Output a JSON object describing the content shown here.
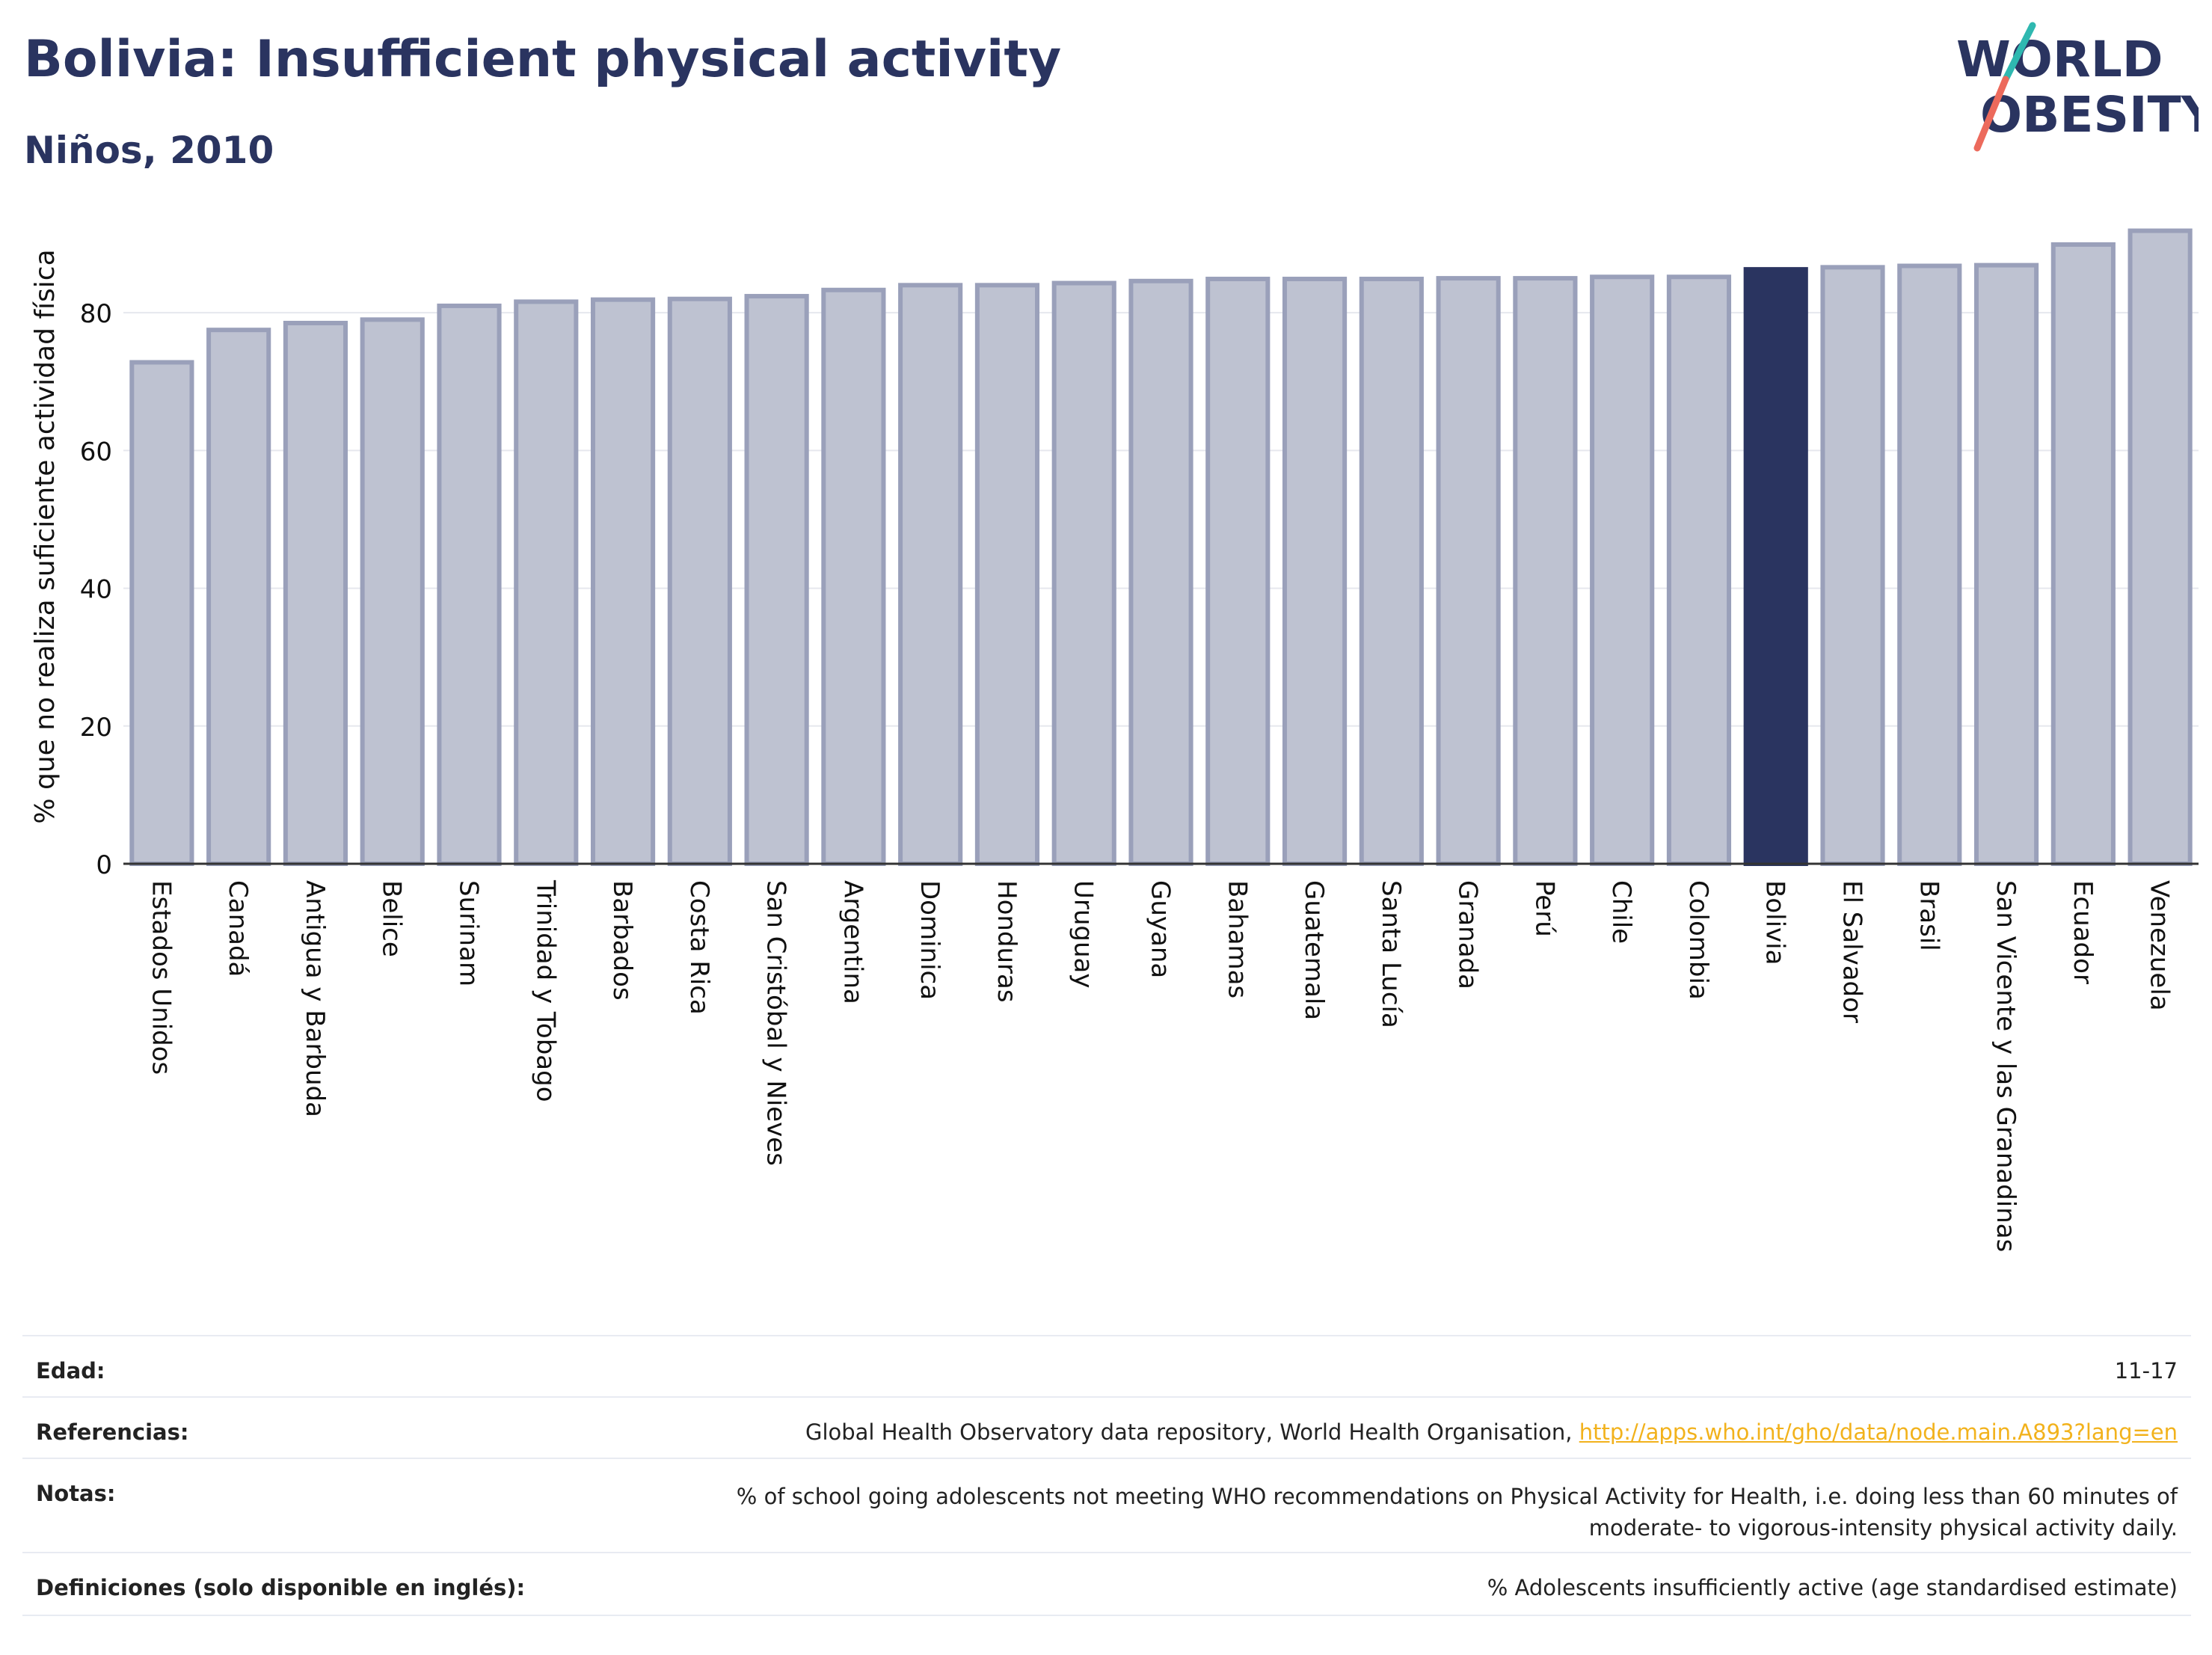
{
  "header": {
    "title": "Bolivia: Insufficient physical activity",
    "subtitle": "Niños, 2010",
    "logo_line1": "WORLD",
    "logo_line2": "OBESITY"
  },
  "colors": {
    "bar_default": "#bec2d1",
    "bar_edge": "#9aa0ba",
    "bar_highlight": "#2a3460",
    "accent_link": "#f2b21c"
  },
  "chart_data": {
    "type": "bar",
    "title": "Bolivia: Insufficient physical activity",
    "subtitle": "Niños, 2010",
    "xlabel": "",
    "ylabel": "% que no realiza suficiente actividad física",
    "ylim": [
      0,
      95
    ],
    "yticks": [
      0,
      20,
      40,
      60,
      80
    ],
    "grid": true,
    "highlight": "Bolivia",
    "categories": [
      "Estados Unidos",
      "Canadá",
      "Antigua y Barbuda",
      "Belice",
      "Surinam",
      "Trinidad y Tobago",
      "Barbados",
      "Costa Rica",
      "San Cristóbal y Nieves",
      "Argentina",
      "Dominica",
      "Honduras",
      "Uruguay",
      "Guyana",
      "Bahamas",
      "Guatemala",
      "Santa Lucía",
      "Granada",
      "Perú",
      "Chile",
      "Colombia",
      "Bolivia",
      "El Salvador",
      "Brasil",
      "San Vicente y las Granadinas",
      "Ecuador",
      "Venezuela"
    ],
    "values": [
      72.8,
      77.5,
      78.5,
      79.0,
      81.0,
      81.6,
      81.9,
      82.0,
      82.4,
      83.3,
      84.0,
      84.0,
      84.3,
      84.6,
      84.9,
      84.9,
      84.9,
      85.0,
      85.0,
      85.2,
      85.2,
      86.3,
      86.6,
      86.8,
      86.9,
      89.9,
      91.9
    ]
  },
  "info_table": {
    "rows": [
      {
        "label": "Edad:",
        "value": "11-17"
      },
      {
        "label": "Referencias:",
        "value": "Global Health Observatory data repository, World Health Organisation, ",
        "link": "http://apps.who.int/gho/data/node.main.A893?lang=en"
      },
      {
        "label": "Notas:",
        "value_line1": "% of school going adolescents not meeting WHO recommendations on Physical Activity for Health, i.e. doing less than 60 minutes of",
        "value_line2": "moderate- to vigorous-intensity physical activity daily."
      },
      {
        "label": "Definiciones (solo disponible en inglés):",
        "value": "% Adolescents insufficiently active (age standardised estimate)"
      }
    ]
  }
}
